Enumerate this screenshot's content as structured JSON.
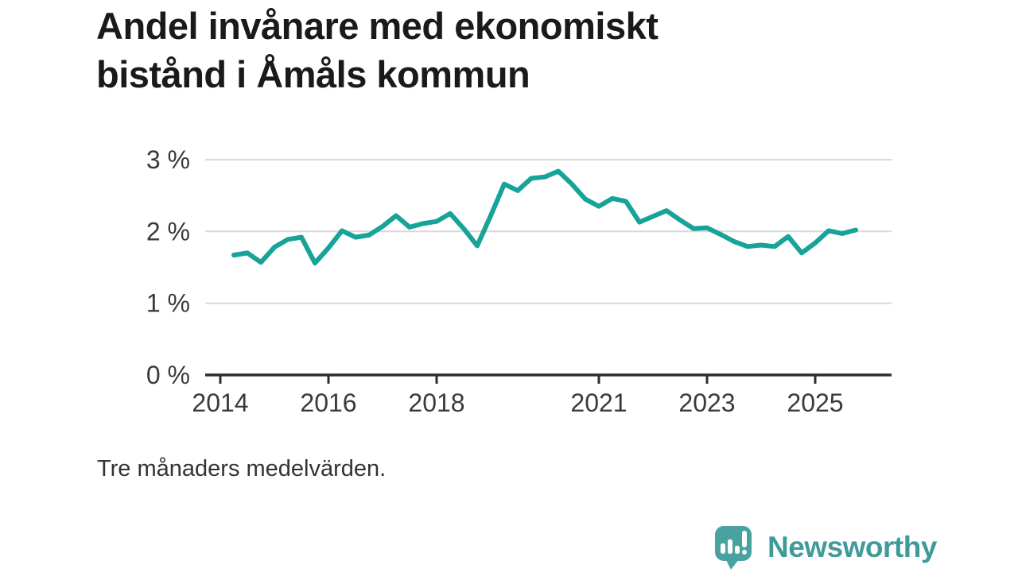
{
  "header": {
    "title_lines": [
      "Andel invånare med ekonomiskt",
      "bistånd i Åmåls kommun"
    ]
  },
  "footer": {
    "note": "Tre månaders medelvärden.",
    "brand": "Newsworthy",
    "brand_icon": "speech-bubble-bar-chart-icon"
  },
  "colors": {
    "line": "#17a29a",
    "grid": "#d9d9d9",
    "axis": "#2d2d2d",
    "tick_text": "#3a3a3a",
    "title": "#1a1a1a",
    "brand": "#3f9b99",
    "background": "#ffffff"
  },
  "chart_data": {
    "type": "line",
    "title": "Andel invånare med ekonomiskt bistånd i Åmåls kommun",
    "subtitle": "Tre månaders medelvärden.",
    "unit": "%",
    "grid": "horizontal",
    "legend": "none",
    "xlim": [
      2013.7,
      2026.4
    ],
    "ylim": [
      0,
      3.2
    ],
    "x_start": 2014.25,
    "x_step": 0.25,
    "x_ticks": [
      {
        "value": 2014,
        "label": "2014"
      },
      {
        "value": 2016,
        "label": "2016"
      },
      {
        "value": 2018,
        "label": "2018"
      },
      {
        "value": 2021,
        "label": "2021"
      },
      {
        "value": 2023,
        "label": "2023"
      },
      {
        "value": 2025,
        "label": "2025"
      }
    ],
    "y_ticks": [
      {
        "value": 0,
        "label": "0 %"
      },
      {
        "value": 1,
        "label": "1 %"
      },
      {
        "value": 2,
        "label": "2 %"
      },
      {
        "value": 3,
        "label": "3 %"
      }
    ],
    "quarters": [
      "2014-Q2",
      "2014-Q3",
      "2014-Q4",
      "2015-Q1",
      "2015-Q2",
      "2015-Q3",
      "2015-Q4",
      "2016-Q1",
      "2016-Q2",
      "2016-Q3",
      "2016-Q4",
      "2017-Q1",
      "2017-Q2",
      "2017-Q3",
      "2017-Q4",
      "2018-Q1",
      "2018-Q2",
      "2018-Q3",
      "2018-Q4",
      "2019-Q1",
      "2019-Q2",
      "2019-Q3",
      "2019-Q4",
      "2020-Q1",
      "2020-Q2",
      "2020-Q3",
      "2020-Q4",
      "2021-Q1",
      "2021-Q2",
      "2021-Q3",
      "2021-Q4",
      "2022-Q1",
      "2022-Q2",
      "2022-Q3",
      "2022-Q4",
      "2023-Q1",
      "2023-Q2",
      "2023-Q3",
      "2023-Q4",
      "2024-Q1",
      "2024-Q2",
      "2024-Q3",
      "2024-Q4",
      "2025-Q1",
      "2025-Q2",
      "2025-Q3",
      "2025-Q4"
    ],
    "values": [
      1.67,
      1.7,
      1.57,
      1.78,
      1.89,
      1.92,
      1.56,
      1.77,
      2.01,
      1.92,
      1.95,
      2.07,
      2.22,
      2.06,
      2.11,
      2.14,
      2.25,
      2.04,
      1.8,
      2.22,
      2.66,
      2.57,
      2.74,
      2.76,
      2.84,
      2.66,
      2.45,
      2.35,
      2.46,
      2.42,
      2.13,
      2.21,
      2.29,
      2.16,
      2.04,
      2.05,
      1.96,
      1.86,
      1.79,
      1.81,
      1.79,
      1.93,
      1.7,
      1.84,
      2.01,
      1.97,
      2.02
    ]
  }
}
